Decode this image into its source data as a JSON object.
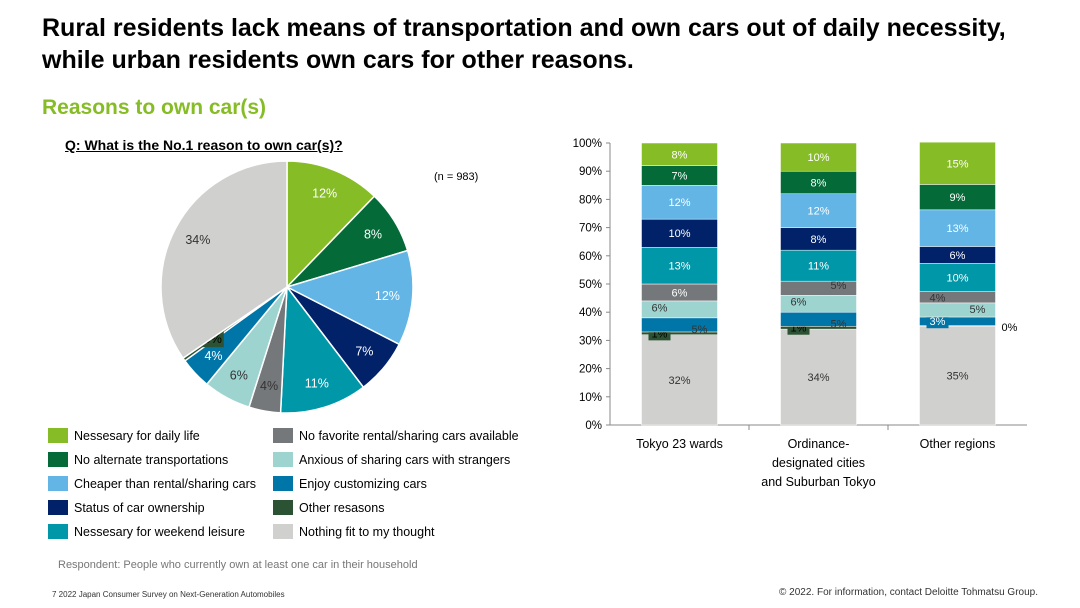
{
  "header": {
    "title": "Rural residents lack means of transportation and own cars out of daily necessity, while urban residents own cars for other reasons.",
    "subtitle": "Reasons to own car(s)"
  },
  "question": "Q: What is the No.1 reason to own car(s)?",
  "n_label": "(n = 983)",
  "colors": {
    "daily": "#86BC25",
    "noalt": "#046A38",
    "cheaper": "#62B5E5",
    "status": "#012169",
    "weekend": "#0097A9",
    "nofav": "#75787B",
    "anxious": "#9DD4CF",
    "custom": "#0076A8",
    "other": "#2C5234",
    "nothing": "#D0D0CE",
    "accent": "#86BC25"
  },
  "legend": [
    {
      "key": "daily",
      "label": "Nessesary for daily life"
    },
    {
      "key": "noalt",
      "label": "No alternate transportations"
    },
    {
      "key": "cheaper",
      "label": "Cheaper than rental/sharing cars"
    },
    {
      "key": "status",
      "label": "Status of car ownership"
    },
    {
      "key": "weekend",
      "label": "Nessesary for weekend leisure"
    },
    {
      "key": "nofav",
      "label": "No favorite rental/sharing cars available"
    },
    {
      "key": "anxious",
      "label": "Anxious of sharing cars with strangers"
    },
    {
      "key": "custom",
      "label": "Enjoy customizing cars"
    },
    {
      "key": "other",
      "label": "Other resasons"
    },
    {
      "key": "nothing",
      "label": "Nothing fit to my thought"
    }
  ],
  "chart_data": [
    {
      "type": "pie",
      "title": "Q: What is the No.1 reason to own car(s)?",
      "slices": [
        {
          "key": "daily",
          "value": 12,
          "label": "12%"
        },
        {
          "key": "noalt",
          "value": 8,
          "label": "8%"
        },
        {
          "key": "cheaper",
          "value": 12,
          "label": "12%"
        },
        {
          "key": "status",
          "value": 7,
          "label": "7%"
        },
        {
          "key": "weekend",
          "value": 11,
          "label": "11%"
        },
        {
          "key": "nofav",
          "value": 4,
          "label": "4%"
        },
        {
          "key": "anxious",
          "value": 6,
          "label": "6%"
        },
        {
          "key": "custom",
          "value": 4,
          "label": "4%"
        },
        {
          "key": "other",
          "value": 0.4,
          "label": "0%"
        },
        {
          "key": "nothing",
          "value": 34,
          "label": "34%"
        }
      ]
    },
    {
      "type": "bar",
      "stacked": true,
      "categories": [
        "Tokyo 23 wards",
        "Ordinance-designated cities and Suburban Tokyo",
        "Other regions"
      ],
      "category_lines": [
        [
          "Tokyo 23 wards"
        ],
        [
          "Ordinance-",
          "designated cities",
          "and Suburban Tokyo"
        ],
        [
          "Other regions"
        ]
      ],
      "ylim": [
        0,
        100
      ],
      "yticks": [
        "0%",
        "10%",
        "20%",
        "30%",
        "40%",
        "50%",
        "60%",
        "70%",
        "80%",
        "90%",
        "100%"
      ],
      "series": [
        {
          "key": "nothing",
          "values": [
            32,
            34,
            35
          ],
          "labels": [
            "32%",
            "34%",
            "35%"
          ]
        },
        {
          "key": "other",
          "values": [
            1,
            1,
            0.3
          ],
          "labels": [
            "1%",
            "1%",
            "0%"
          ]
        },
        {
          "key": "custom",
          "values": [
            5,
            5,
            3
          ],
          "labels": [
            "5%",
            "5%",
            "3%"
          ]
        },
        {
          "key": "anxious",
          "values": [
            6,
            6,
            5
          ],
          "labels": [
            "6%",
            "6%",
            "5%"
          ]
        },
        {
          "key": "nofav",
          "values": [
            6,
            5,
            4
          ],
          "labels": [
            "6%",
            "5%",
            "4%"
          ]
        },
        {
          "key": "weekend",
          "values": [
            13,
            11,
            10
          ],
          "labels": [
            "13%",
            "11%",
            "10%"
          ]
        },
        {
          "key": "status",
          "values": [
            10,
            8,
            6
          ],
          "labels": [
            "10%",
            "8%",
            "6%"
          ]
        },
        {
          "key": "cheaper",
          "values": [
            12,
            12,
            13
          ],
          "labels": [
            "12%",
            "12%",
            "13%"
          ]
        },
        {
          "key": "noalt",
          "values": [
            7,
            8,
            9
          ],
          "labels": [
            "7%",
            "8%",
            "9%"
          ]
        },
        {
          "key": "daily",
          "values": [
            8,
            10,
            15
          ],
          "labels": [
            "8%",
            "10%",
            "15%"
          ]
        }
      ]
    }
  ],
  "respondent_note": "Respondent: People who currently own at least one car in their household",
  "footer": {
    "left": "7   2022 Japan Consumer Survey on Next-Generation Automobiles",
    "right": "© 2022. For information, contact Deloitte Tohmatsu Group."
  }
}
